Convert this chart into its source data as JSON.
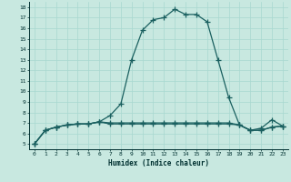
{
  "xlabel": "Humidex (Indice chaleur)",
  "background_color": "#c8e8e0",
  "line_color": "#1a6060",
  "grid_color": "#a8d8d0",
  "xlim": [
    -0.5,
    23.5
  ],
  "ylim": [
    4.5,
    18.5
  ],
  "xticks": [
    0,
    1,
    2,
    3,
    4,
    5,
    6,
    7,
    8,
    9,
    10,
    11,
    12,
    13,
    14,
    15,
    16,
    17,
    18,
    19,
    20,
    21,
    22,
    23
  ],
  "yticks": [
    5,
    6,
    7,
    8,
    9,
    10,
    11,
    12,
    13,
    14,
    15,
    16,
    17,
    18
  ],
  "curve1_x": [
    0,
    1,
    2,
    3,
    4,
    5,
    6,
    7,
    8,
    9,
    10,
    11,
    12,
    13,
    14,
    15,
    16,
    17,
    18,
    19,
    20,
    21,
    22,
    23
  ],
  "curve1_y": [
    5.0,
    6.3,
    6.6,
    6.8,
    6.9,
    6.9,
    7.1,
    7.7,
    8.8,
    13.0,
    15.8,
    16.8,
    17.0,
    17.8,
    17.3,
    17.3,
    16.6,
    13.0,
    9.4,
    6.8,
    6.3,
    6.5,
    7.3,
    6.7
  ],
  "curve2_x": [
    0,
    1,
    2,
    3,
    4,
    5,
    6,
    7,
    8,
    9,
    10,
    11,
    12,
    13,
    14,
    15,
    16,
    17,
    18,
    19,
    20,
    21,
    22,
    23
  ],
  "curve2_y": [
    5.0,
    6.3,
    6.6,
    6.8,
    6.9,
    6.9,
    7.1,
    7.0,
    7.0,
    7.0,
    7.0,
    7.0,
    7.0,
    7.0,
    7.0,
    7.0,
    7.0,
    7.0,
    7.0,
    6.8,
    6.3,
    6.3,
    6.6,
    6.7
  ],
  "curve3_x": [
    0,
    1,
    2,
    3,
    4,
    5,
    6,
    7,
    8,
    9,
    10,
    11,
    12,
    13,
    14,
    15,
    16,
    17,
    18,
    19,
    20,
    21,
    22,
    23
  ],
  "curve3_y": [
    5.0,
    6.3,
    6.6,
    6.8,
    6.9,
    6.9,
    7.1,
    6.9,
    6.9,
    6.9,
    6.9,
    6.9,
    6.9,
    6.9,
    6.9,
    6.9,
    6.9,
    6.9,
    6.9,
    6.8,
    6.3,
    6.3,
    6.6,
    6.7
  ]
}
